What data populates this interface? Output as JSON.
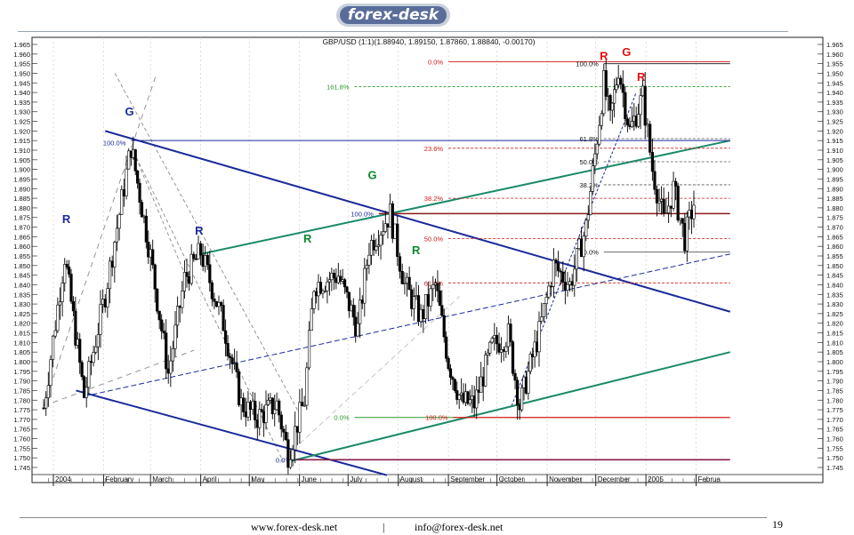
{
  "header": {
    "logo_text": "forex-desk"
  },
  "chart_data": {
    "type": "candlestick",
    "title": "GBP/USD (1:1)(1.88940, 1.89150, 1.87860, 1.88840, -0.00170)",
    "ylim": [
      1.745,
      1.965
    ],
    "y_ticks": [
      "1.965",
      "1.960",
      "1.955",
      "1.950",
      "1.945",
      "1.940",
      "1.935",
      "1.930",
      "1.925",
      "1.920",
      "1.915",
      "1.910",
      "1.905",
      "1.900",
      "1.895",
      "1.890",
      "1.885",
      "1.880",
      "1.875",
      "1.870",
      "1.865",
      "1.860",
      "1.855",
      "1.850",
      "1.845",
      "1.840",
      "1.835",
      "1.830",
      "1.825",
      "1.820",
      "1.815",
      "1.810",
      "1.805",
      "1.800",
      "1.795",
      "1.790",
      "1.785",
      "1.780",
      "1.775",
      "1.770",
      "1.765",
      "1.760",
      "1.755",
      "1.750",
      "1.745"
    ],
    "x_tick_labels": [
      "2004",
      "February",
      "March",
      "April",
      "May",
      "June",
      "July",
      "August",
      "September",
      "October",
      "November",
      "December",
      "2005",
      "Februa"
    ],
    "price_path": [
      {
        "x": "2003-12-26",
        "y": 1.776
      },
      {
        "x": "2004-01-08",
        "y": 1.855
      },
      {
        "x": "2004-01-20",
        "y": 1.782
      },
      {
        "x": "2004-02-02",
        "y": 1.835
      },
      {
        "x": "2004-02-18",
        "y": 1.912
      },
      {
        "x": "2004-03-01",
        "y": 1.855
      },
      {
        "x": "2004-03-12",
        "y": 1.794
      },
      {
        "x": "2004-03-22",
        "y": 1.843
      },
      {
        "x": "2004-04-01",
        "y": 1.857
      },
      {
        "x": "2004-04-15",
        "y": 1.82
      },
      {
        "x": "2004-04-26",
        "y": 1.778
      },
      {
        "x": "2004-05-06",
        "y": 1.771
      },
      {
        "x": "2004-05-18",
        "y": 1.778
      },
      {
        "x": "2004-05-25",
        "y": 1.752
      },
      {
        "x": "2004-06-04",
        "y": 1.78
      },
      {
        "x": "2004-06-10",
        "y": 1.84
      },
      {
        "x": "2004-06-25",
        "y": 1.845
      },
      {
        "x": "2004-07-07",
        "y": 1.817
      },
      {
        "x": "2004-07-14",
        "y": 1.86
      },
      {
        "x": "2004-07-27",
        "y": 1.877
      },
      {
        "x": "2004-08-05",
        "y": 1.84
      },
      {
        "x": "2004-08-15",
        "y": 1.823
      },
      {
        "x": "2004-08-24",
        "y": 1.84
      },
      {
        "x": "2004-09-01",
        "y": 1.8
      },
      {
        "x": "2004-09-09",
        "y": 1.779
      },
      {
        "x": "2004-09-17",
        "y": 1.778
      },
      {
        "x": "2004-09-28",
        "y": 1.808
      },
      {
        "x": "2004-10-08",
        "y": 1.814
      },
      {
        "x": "2004-10-15",
        "y": 1.777
      },
      {
        "x": "2004-10-27",
        "y": 1.815
      },
      {
        "x": "2004-11-05",
        "y": 1.85
      },
      {
        "x": "2004-11-15",
        "y": 1.84
      },
      {
        "x": "2004-11-25",
        "y": 1.87
      },
      {
        "x": "2004-12-06",
        "y": 1.945
      },
      {
        "x": "2004-12-10",
        "y": 1.925
      },
      {
        "x": "2004-12-15",
        "y": 1.953
      },
      {
        "x": "2004-12-22",
        "y": 1.92
      },
      {
        "x": "2004-12-30",
        "y": 1.938
      },
      {
        "x": "2005-01-05",
        "y": 1.9
      },
      {
        "x": "2005-01-12",
        "y": 1.873
      },
      {
        "x": "2005-01-18",
        "y": 1.89
      },
      {
        "x": "2005-01-25",
        "y": 1.864
      },
      {
        "x": "2005-02-01",
        "y": 1.887
      }
    ],
    "fibonacci_levels": [
      {
        "label": "0.0%",
        "y": 1.956
      },
      {
        "label": "161.8%",
        "y": 1.943
      },
      {
        "label": "23.6%",
        "y": 1.911
      },
      {
        "label": "38.2%",
        "y": 1.885
      },
      {
        "label": "50.0%",
        "y": 1.864
      },
      {
        "label": "61.8%",
        "y": 1.841
      },
      {
        "label": "100.0%",
        "y": 1.914
      },
      {
        "label": "100.0%",
        "y": 1.877
      },
      {
        "label": "0.0%",
        "y": 1.771
      },
      {
        "label": "100.0%",
        "y": 1.771
      },
      {
        "label": "0.0%",
        "y": 1.749
      },
      {
        "label": "100.0%",
        "y": 1.955
      },
      {
        "label": "61.8%",
        "y": 1.916
      },
      {
        "label": "50.0%",
        "y": 1.904
      },
      {
        "label": "38.2%",
        "y": 1.892
      },
      {
        "label": "0.0%",
        "y": 1.857
      }
    ],
    "annotations": [
      {
        "text": "R",
        "color": "#1a2a9a",
        "x": "2004-01-09",
        "y": 1.872
      },
      {
        "text": "G",
        "color": "#1a2a9a",
        "x": "2004-02-17",
        "y": 1.928
      },
      {
        "text": "R",
        "color": "#1a2a9a",
        "x": "2004-03-31",
        "y": 1.866
      },
      {
        "text": "R",
        "color": "#0c8a2e",
        "x": "2004-06-06",
        "y": 1.862
      },
      {
        "text": "G",
        "color": "#0c8a2e",
        "x": "2004-07-16",
        "y": 1.895
      },
      {
        "text": "R",
        "color": "#0c8a2e",
        "x": "2004-08-12",
        "y": 1.856
      },
      {
        "text": "R",
        "color": "#e01010",
        "x": "2004-12-06",
        "y": 1.957
      },
      {
        "text": "G",
        "color": "#e01010",
        "x": "2004-12-20",
        "y": 1.959
      },
      {
        "text": "R",
        "color": "#e01010",
        "x": "2004-12-29",
        "y": 1.946
      }
    ],
    "colors": {
      "candles": "#000000",
      "trend_blue": "#1a2a9a",
      "trend_green": "#1a8a6a",
      "fib_red": "#d01818",
      "fib_green": "#2a9a2a",
      "grid": "#c8c8c8"
    },
    "grid": true
  },
  "footer": {
    "website": "www.forex-desk.net",
    "separator": "|",
    "email": "info@forex-desk.net",
    "page_number": "19"
  }
}
